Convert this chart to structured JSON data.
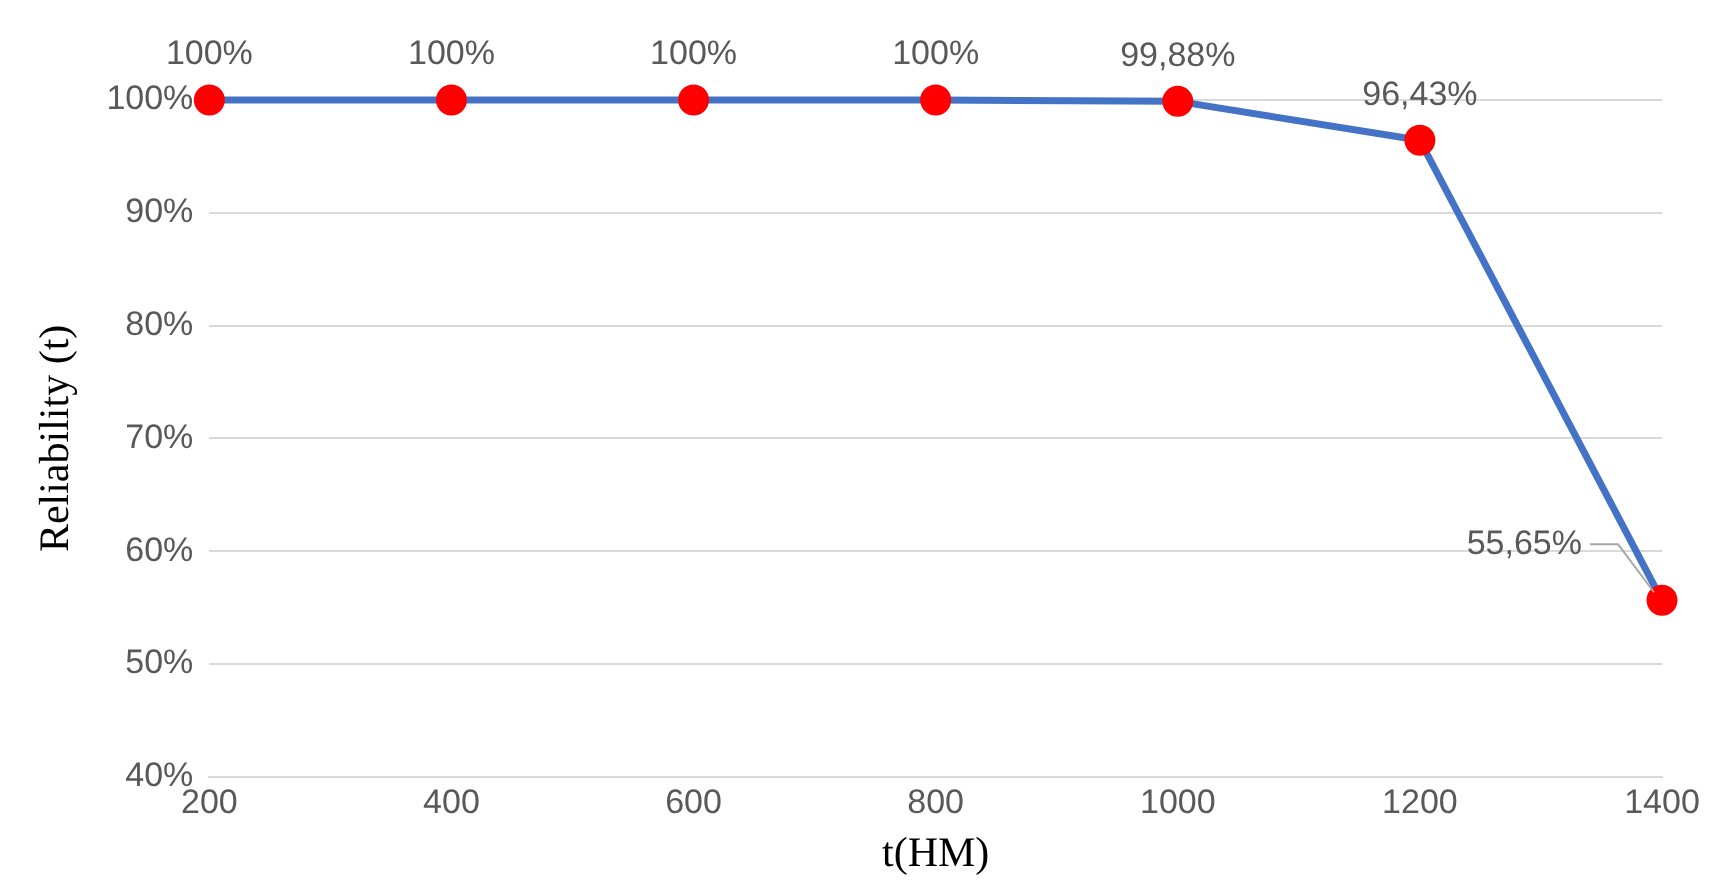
{
  "chart_data": {
    "type": "line",
    "xlabel": "t(HM)",
    "ylabel": "Reliability (t)",
    "x": [
      200,
      400,
      600,
      800,
      1000,
      1200,
      1400
    ],
    "series": [
      {
        "color": "#4472c4",
        "colors": [
          "#ff0000",
          "#ff0000",
          "#ff0000",
          "#ff0000",
          "#ff0000",
          "#ff0000",
          "#ff0000"
        ],
        "values": [
          100,
          100,
          100,
          100,
          99.88,
          96.43,
          55.65
        ],
        "value_labels": [
          "100%",
          "100%",
          "100%",
          "100%",
          "99,88%",
          "96,43%",
          "55,65%"
        ]
      }
    ],
    "xlim": [
      200,
      1400
    ],
    "xticks": [
      200,
      400,
      600,
      800,
      1000,
      1200,
      1400
    ],
    "ylim": [
      40,
      100
    ],
    "yticks": [
      {
        "value": 40,
        "label": "40%"
      },
      {
        "value": 50,
        "label": "50%"
      },
      {
        "value": 60,
        "label": "60%"
      },
      {
        "value": 70,
        "label": "70%"
      },
      {
        "value": 80,
        "label": "80%"
      },
      {
        "value": 90,
        "label": "90%"
      },
      {
        "value": 100,
        "label": "100%"
      }
    ],
    "grid": "y",
    "legend": false,
    "marker": "circle",
    "line_style": "solid"
  }
}
